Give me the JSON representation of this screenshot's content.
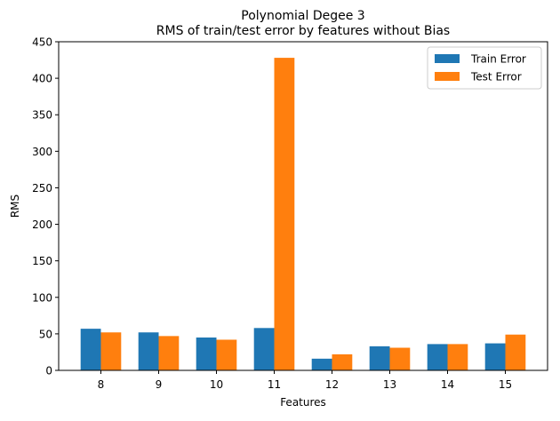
{
  "chart_data": {
    "type": "bar",
    "title": "Polynomial Degee 3",
    "subtitle": "RMS of train/test error by features without Bias",
    "xlabel": "Features",
    "ylabel": "RMS",
    "categories": [
      "8",
      "9",
      "10",
      "11",
      "12",
      "13",
      "14",
      "15"
    ],
    "series": [
      {
        "name": "Train Error",
        "color": "#1f77b4",
        "values": [
          57,
          52,
          45,
          58,
          16,
          33,
          36,
          37
        ]
      },
      {
        "name": "Test Error",
        "color": "#ff7f0e",
        "values": [
          52,
          47,
          42,
          428,
          22,
          31,
          36,
          49
        ]
      }
    ],
    "ylim": [
      0,
      450
    ],
    "yticks": [
      0,
      50,
      100,
      150,
      200,
      250,
      300,
      350,
      400,
      450
    ],
    "grid": false,
    "legend_position": "top-right"
  }
}
